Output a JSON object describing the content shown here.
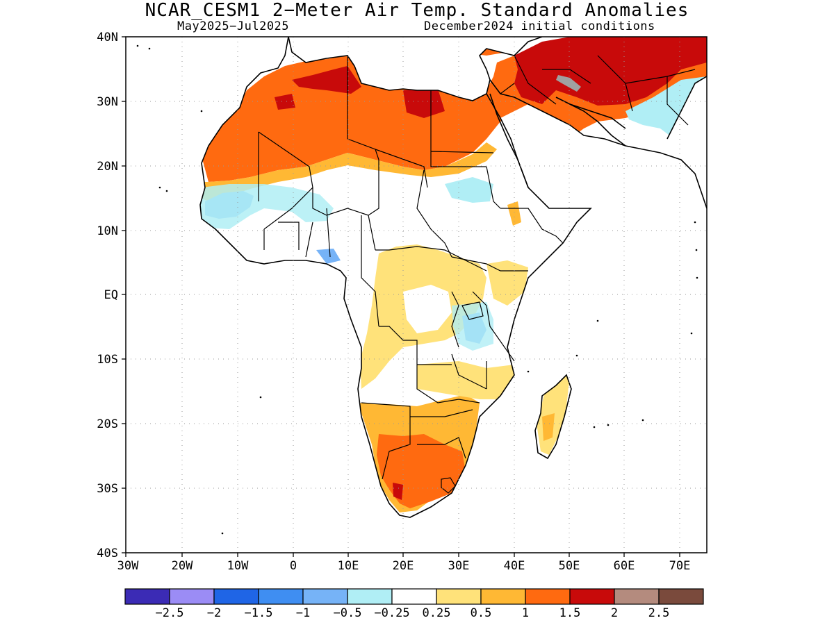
{
  "title": "NCAR_CESM1 2−Meter Air Temp. Standard Anomalies",
  "subtitle_left": "May2025−Jul2025",
  "subtitle_right": "December2024 initial conditions",
  "lat_labels": [
    "40N",
    "30N",
    "20N",
    "10N",
    "EQ",
    "10S",
    "20S",
    "30S",
    "40S"
  ],
  "lon_labels": [
    "30W",
    "20W",
    "10W",
    "0",
    "10E",
    "20E",
    "30E",
    "40E",
    "50E",
    "60E",
    "70E"
  ],
  "colorbar": {
    "colors": [
      "#3b2bb5",
      "#9b8cf5",
      "#1f65e6",
      "#3f8ef2",
      "#76b3f7",
      "#b0eef5",
      "#ffffff",
      "#ffe27a",
      "#ffb834",
      "#ff6a10",
      "#c80a0a",
      "#b48b7e",
      "#7a4a3c"
    ],
    "labels": [
      "−2.5",
      "−2",
      "−1.5",
      "−1",
      "−0.5",
      "−0.25",
      "0.25",
      "0.5",
      "1",
      "1.5",
      "2",
      "2.5"
    ]
  },
  "legend_colors": {
    "missing": "#a0a0a0"
  }
}
